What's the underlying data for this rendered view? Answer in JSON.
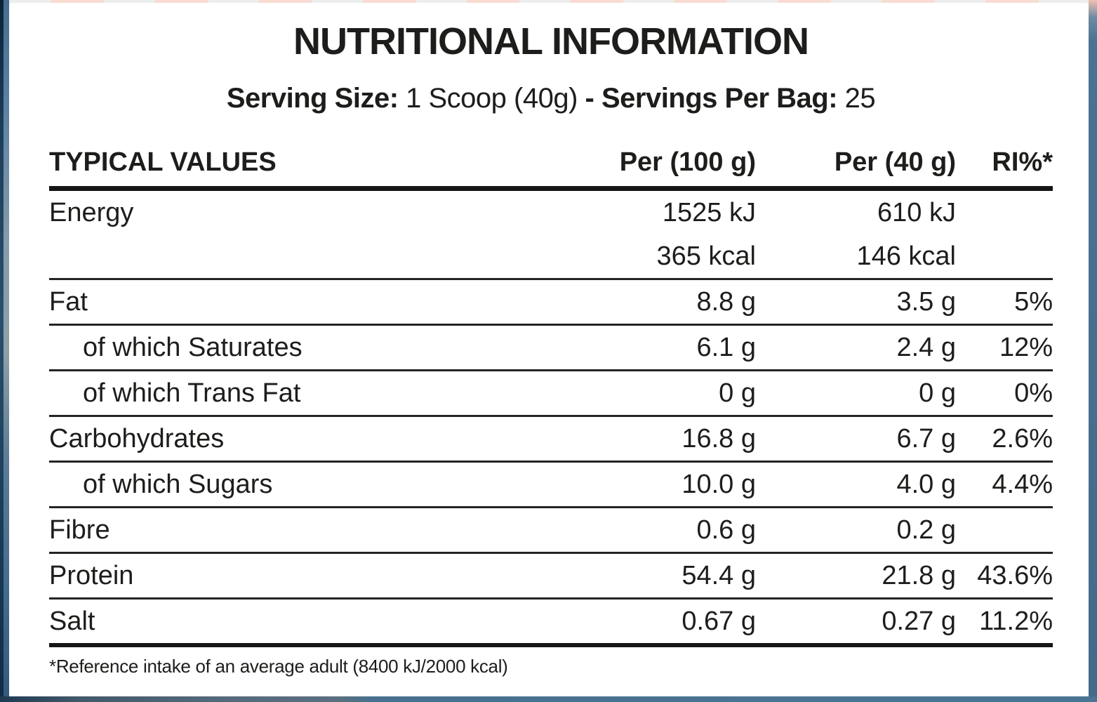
{
  "page": {
    "title": "NUTRITIONAL INFORMATION",
    "subtitle_segments": [
      {
        "text": "Serving Size: ",
        "bold": true
      },
      {
        "text": "1 Scoop (40g) ",
        "bold": false
      },
      {
        "text": "- Servings Per Bag: ",
        "bold": true
      },
      {
        "text": "25",
        "bold": false
      }
    ],
    "footnote": "*Reference intake of an average adult (8400 kJ/2000 kcal)"
  },
  "table": {
    "headers": [
      "TYPICAL VALUES",
      "Per (100 g)",
      "Per (40 g)",
      "RI%*"
    ],
    "rows": [
      {
        "label": "Energy",
        "indent": false,
        "values": [
          [
            "1525 kJ",
            "610 kJ",
            ""
          ],
          [
            "365 kcal",
            "146 kcal",
            ""
          ]
        ]
      },
      {
        "label": "Fat",
        "indent": false,
        "values": [
          [
            "8.8 g",
            "3.5 g",
            "5%"
          ]
        ]
      },
      {
        "label": "of which Saturates",
        "indent": true,
        "values": [
          [
            "6.1 g",
            "2.4 g",
            "12%"
          ]
        ]
      },
      {
        "label": "of which Trans Fat",
        "indent": true,
        "values": [
          [
            "0 g",
            "0 g",
            "0%"
          ]
        ]
      },
      {
        "label": "Carbohydrates",
        "indent": false,
        "values": [
          [
            "16.8 g",
            "6.7 g",
            "2.6%"
          ]
        ]
      },
      {
        "label": "of which Sugars",
        "indent": true,
        "values": [
          [
            "10.0 g",
            "4.0 g",
            "4.4%"
          ]
        ]
      },
      {
        "label": "Fibre",
        "indent": false,
        "values": [
          [
            "0.6 g",
            "0.2 g",
            ""
          ]
        ]
      },
      {
        "label": "Protein",
        "indent": false,
        "values": [
          [
            "54.4 g",
            "21.8 g",
            "43.6%"
          ]
        ]
      },
      {
        "label": "Salt",
        "indent": false,
        "values": [
          [
            "0.67 g",
            "0.27 g",
            "11.2%"
          ]
        ]
      }
    ]
  },
  "colors": {
    "text": "#1d1d1b",
    "steel": "#4b7292",
    "strip-salmon": "#f8dcd2",
    "strip-gray": "#eceeee"
  }
}
